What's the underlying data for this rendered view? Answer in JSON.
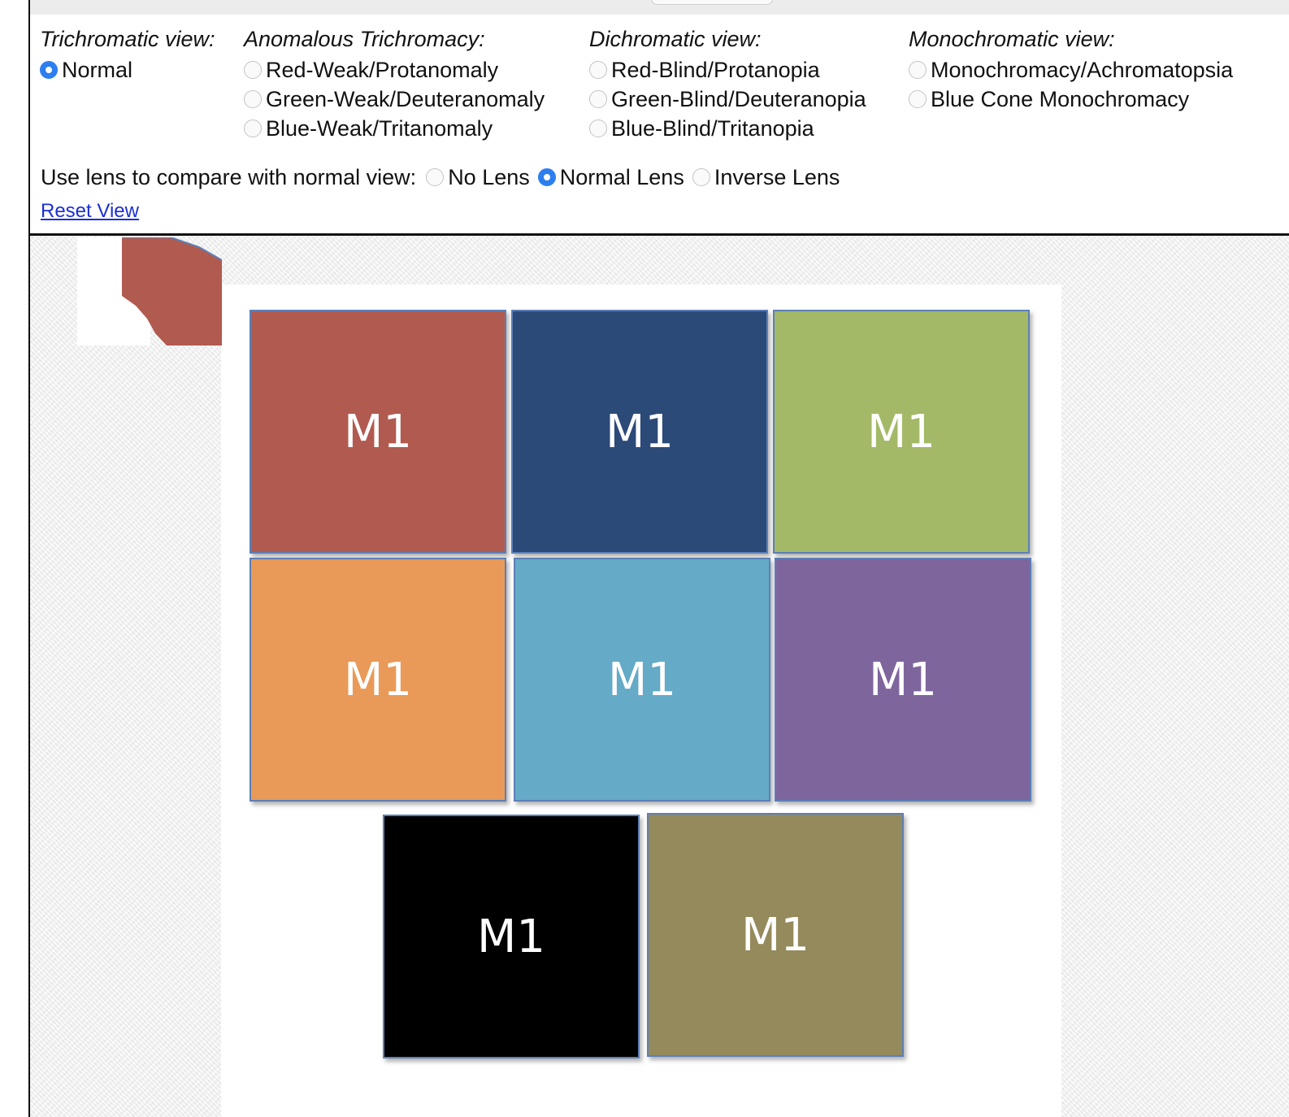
{
  "sections": {
    "trichromatic": {
      "heading": "Trichromatic view:",
      "options": [
        "Normal"
      ]
    },
    "anomalous": {
      "heading": "Anomalous Trichromacy:",
      "options": [
        "Red-Weak/Protanomaly",
        "Green-Weak/Deuteranomaly",
        "Blue-Weak/Tritanomaly"
      ]
    },
    "dichromatic": {
      "heading": "Dichromatic view:",
      "options": [
        "Red-Blind/Protanopia",
        "Green-Blind/Deuteranopia",
        "Blue-Blind/Tritanopia"
      ]
    },
    "monochromatic": {
      "heading": "Monochromatic view:",
      "options": [
        "Monochromacy/Achromatopsia",
        "Blue Cone Monochromacy"
      ]
    }
  },
  "selected_view": "Normal",
  "lens": {
    "label": "Use lens to compare with normal view:",
    "options": [
      "No Lens",
      "Normal Lens",
      "Inverse Lens"
    ],
    "selected": "Normal Lens"
  },
  "reset_link": "Reset View",
  "tiles": [
    {
      "label": "M1",
      "color": "#b15a50"
    },
    {
      "label": "M1",
      "color": "#2c4a78"
    },
    {
      "label": "M1",
      "color": "#a3b967"
    },
    {
      "label": "M1",
      "color": "#e99a58"
    },
    {
      "label": "M1",
      "color": "#65aac6"
    },
    {
      "label": "M1",
      "color": "#7e669d"
    },
    {
      "label": "M1",
      "color": "#000000"
    },
    {
      "label": "M1",
      "color": "#958a5c"
    }
  ],
  "lens_fragment_color": "#b15a50",
  "accent_color": "#2d7ff0",
  "link_color": "#1a2fd6"
}
